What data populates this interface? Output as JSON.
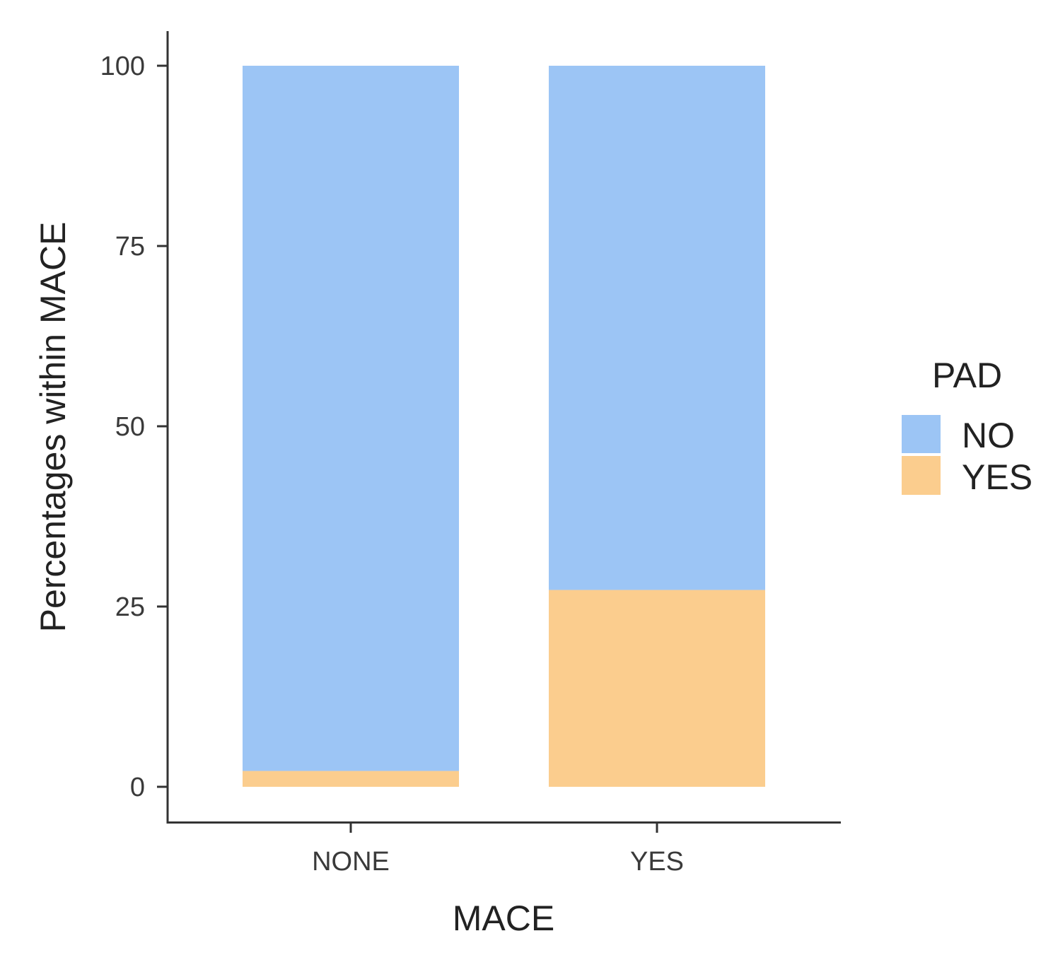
{
  "chart_data": {
    "type": "bar",
    "stacked": true,
    "categories": [
      "NONE",
      "YES"
    ],
    "series": [
      {
        "name": "YES",
        "values": [
          2.2,
          27.3
        ],
        "color": "#fbcd8e"
      },
      {
        "name": "NO",
        "values": [
          97.8,
          72.7
        ],
        "color": "#9cc5f5"
      }
    ],
    "xlabel": "MACE",
    "ylabel": "Percentages within MACE",
    "ylim": [
      0,
      100
    ],
    "yticks": [
      0,
      25,
      50,
      75,
      100
    ],
    "ytick_labels": [
      "0",
      "25",
      "50",
      "75",
      "100"
    ],
    "grid": false,
    "legend": {
      "title": "PAD",
      "placement": "right",
      "entries": [
        {
          "label": "NO",
          "color": "#9cc5f5"
        },
        {
          "label": "YES",
          "color": "#fbcd8e"
        }
      ]
    }
  }
}
